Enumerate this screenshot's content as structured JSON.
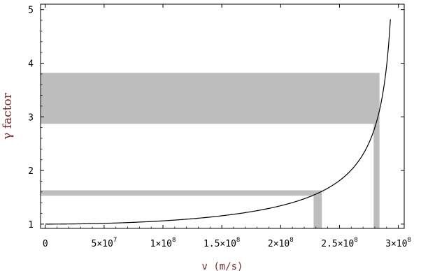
{
  "chart_data": {
    "type": "line",
    "xlabel": "v  (m/s)",
    "ylabel": "γ factor",
    "xlim": [
      -4000000,
      305000000
    ],
    "ylim": [
      0.92,
      5.1
    ],
    "c": 299792458,
    "curve_x_start": 0,
    "curve_x_end": 294000000,
    "x_ticks": [
      {
        "value": 0,
        "mantissa": "0",
        "exp": ""
      },
      {
        "value": 50000000,
        "mantissa": "5×10",
        "exp": "7"
      },
      {
        "value": 100000000,
        "mantissa": "1×10",
        "exp": "8"
      },
      {
        "value": 150000000,
        "mantissa": "1.5×10",
        "exp": "8"
      },
      {
        "value": 200000000,
        "mantissa": "2×10",
        "exp": "8"
      },
      {
        "value": 250000000,
        "mantissa": "2.5×10",
        "exp": "8"
      },
      {
        "value": 300000000,
        "mantissa": "3×10",
        "exp": "8"
      }
    ],
    "y_ticks": [
      1,
      2,
      3,
      4,
      5
    ],
    "highlight_bands": [
      {
        "orientation": "horizontal",
        "from": 2.87,
        "to": 3.82,
        "x_to": 284000000
      },
      {
        "orientation": "vertical",
        "from": 279000000,
        "to": 284000000,
        "y_to": 2.87
      },
      {
        "orientation": "horizontal",
        "from": 1.53,
        "to": 1.63,
        "x_to": 235000000
      },
      {
        "orientation": "vertical",
        "from": 228000000,
        "to": 235000000,
        "y_to": 1.53
      }
    ],
    "band_color": "#bdbdbd",
    "line_color": "#000000",
    "label_color": "#7a2d2d"
  }
}
